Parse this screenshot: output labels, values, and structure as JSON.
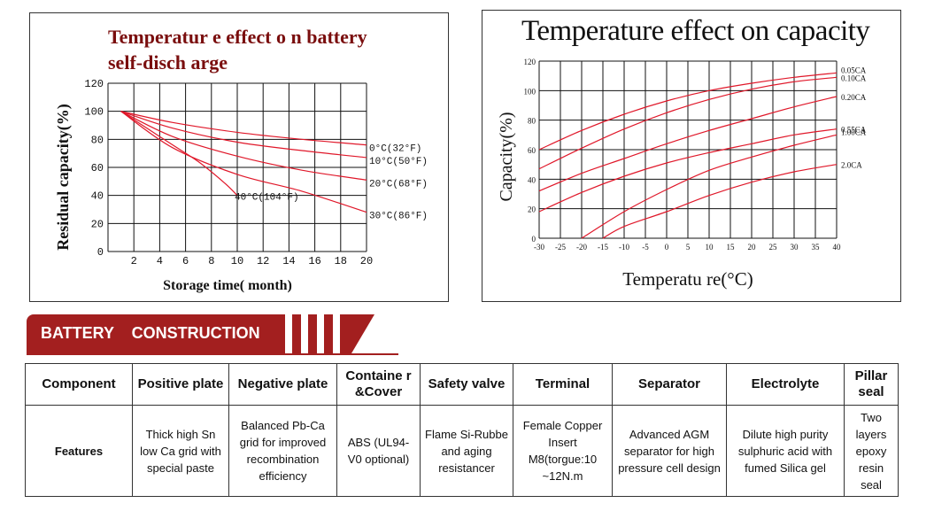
{
  "left_chart": {
    "title_line1": "Temperatur e effect o n battery",
    "title_line2": "self-disch arge",
    "ylabel": "Residual capacity(%)",
    "xlabel": "Storage time( month)",
    "y_ticks": [
      "0",
      "20",
      "40",
      "60",
      "80",
      "100",
      "120"
    ],
    "x_ticks": [
      "2",
      "4",
      "6",
      "8",
      "10",
      "12",
      "14",
      "16",
      "18",
      "20"
    ]
  },
  "right_chart": {
    "title": "Temperature effect on capacity",
    "ylabel": "Capacity(%)",
    "xlabel": "Temperatu re(°C)",
    "y_ticks": [
      "0",
      "20",
      "40",
      "60",
      "80",
      "100",
      "120"
    ],
    "x_ticks": [
      "-30",
      "-25",
      "-20",
      "-15",
      "-10",
      "-5",
      "0",
      "5",
      "10",
      "15",
      "20",
      "25",
      "30",
      "35",
      "40"
    ]
  },
  "chart_data": [
    {
      "type": "line",
      "title": "Temperatur e effect o n battery self-disch arge",
      "xlabel": "Storage time( month)",
      "ylabel": "Residual capacity(%)",
      "xlim": [
        0,
        20
      ],
      "ylim": [
        0,
        120
      ],
      "grid": true,
      "series": [
        {
          "name": "0°C(32°F)",
          "x": [
            1,
            5,
            10,
            15,
            20
          ],
          "y": [
            100,
            92,
            85,
            80,
            76
          ]
        },
        {
          "name": "10°C(50°F)",
          "x": [
            1,
            5,
            10,
            15,
            20
          ],
          "y": [
            100,
            88,
            78,
            72,
            67
          ]
        },
        {
          "name": "20°C(68°F)",
          "x": [
            1,
            5,
            10,
            15,
            20
          ],
          "y": [
            100,
            82,
            68,
            58,
            51
          ]
        },
        {
          "name": "30°C(86°F)",
          "x": [
            1,
            5,
            10,
            15,
            20
          ],
          "y": [
            100,
            74,
            55,
            43,
            28
          ]
        },
        {
          "name": "40°C(104°F)",
          "x": [
            1,
            3,
            5,
            7,
            9,
            10
          ],
          "y": [
            100,
            88,
            76,
            64,
            49,
            40
          ]
        }
      ]
    },
    {
      "type": "line",
      "title": "Temperature effect on capacity",
      "xlabel": "Temperatu re(°C)",
      "ylabel": "Capacity(%)",
      "xlim": [
        -30,
        40
      ],
      "ylim": [
        0,
        120
      ],
      "grid": true,
      "series": [
        {
          "name": "0.05CA",
          "x": [
            -30,
            -20,
            -10,
            0,
            10,
            20,
            30,
            40
          ],
          "y": [
            60,
            73,
            84,
            93,
            100,
            105,
            109,
            112
          ]
        },
        {
          "name": "0.10CA",
          "x": [
            -30,
            -20,
            -10,
            0,
            10,
            20,
            30,
            40
          ],
          "y": [
            47,
            61,
            74,
            85,
            94,
            101,
            106,
            109
          ]
        },
        {
          "name": "0.20CA",
          "x": [
            -30,
            -20,
            -10,
            0,
            10,
            20,
            30,
            40
          ],
          "y": [
            32,
            44,
            54,
            64,
            73,
            81,
            89,
            96
          ]
        },
        {
          "name": "0.55CA",
          "x": [
            -30,
            -20,
            -10,
            0,
            10,
            20,
            30,
            40
          ],
          "y": [
            18,
            31,
            42,
            51,
            58,
            64,
            70,
            74
          ]
        },
        {
          "name": "1.00CA",
          "x": [
            -20,
            -10,
            0,
            10,
            20,
            30,
            40
          ],
          "y": [
            0,
            18,
            33,
            46,
            55,
            63,
            70
          ]
        },
        {
          "name": "2.0CA",
          "x": [
            -15,
            -10,
            0,
            10,
            20,
            30,
            40
          ],
          "y": [
            0,
            8,
            18,
            29,
            38,
            45,
            50
          ]
        }
      ]
    }
  ],
  "banner": {
    "label": "BATTERY    CONSTRUCTION"
  },
  "table": {
    "headers": [
      "Component",
      "Positive plate",
      "Negative plate",
      "Containe r &Cover",
      "Safety valve",
      "Terminal",
      "Separator",
      "Electrolyte",
      "Pillar seal"
    ],
    "row_label": "Features",
    "cells": [
      "Thick high Sn low Ca grid with special paste",
      "Balanced Pb-Ca grid for improved recombination efficiency",
      "ABS (UL94-V0 optional)",
      "Flame Si-Rubbe and aging resistancer",
      "Female Copper Insert M8(torgue:10 ~12N.m",
      "Advanced AGM separator for high pressure cell design",
      "Dilute high purity sulphuric acid with fumed Silica gel",
      "Two layers epoxy resin seal"
    ]
  }
}
